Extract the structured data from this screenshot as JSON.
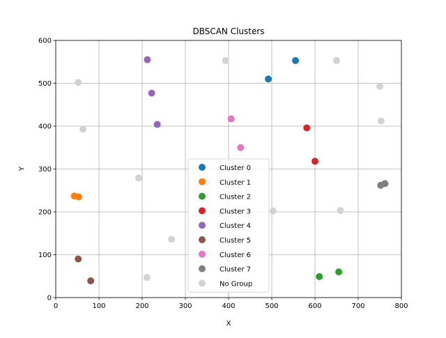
{
  "chart_data": {
    "type": "scatter",
    "title": "DBSCAN Clusters",
    "xlabel": "X",
    "ylabel": "Y",
    "xlim": [
      0,
      800
    ],
    "ylim": [
      0,
      600
    ],
    "xticks": [
      0,
      100,
      200,
      300,
      400,
      500,
      600,
      700,
      800
    ],
    "yticks": [
      0,
      100,
      200,
      300,
      400,
      500,
      600
    ],
    "grid": true,
    "legend_position": "lower-center",
    "series": [
      {
        "name": "Cluster 0",
        "color": "#1f77b4",
        "points": [
          [
            492,
            510
          ],
          [
            555,
            553
          ]
        ]
      },
      {
        "name": "Cluster 1",
        "color": "#ff7f0e",
        "points": [
          [
            43,
            237
          ],
          [
            53,
            235
          ]
        ]
      },
      {
        "name": "Cluster 2",
        "color": "#2ca02c",
        "points": [
          [
            610,
            49
          ],
          [
            655,
            60
          ]
        ]
      },
      {
        "name": "Cluster 3",
        "color": "#d62728",
        "points": [
          [
            581,
            396
          ],
          [
            600,
            318
          ]
        ]
      },
      {
        "name": "Cluster 4",
        "color": "#9467bd",
        "points": [
          [
            212,
            555
          ],
          [
            222,
            477
          ],
          [
            235,
            404
          ]
        ]
      },
      {
        "name": "Cluster 5",
        "color": "#8c564b",
        "points": [
          [
            52,
            90
          ],
          [
            81,
            39
          ]
        ]
      },
      {
        "name": "Cluster 6",
        "color": "#e377c2",
        "points": [
          [
            406,
            417
          ],
          [
            428,
            350
          ]
        ]
      },
      {
        "name": "Cluster 7",
        "color": "#7f7f7f",
        "points": [
          [
            752,
            262
          ],
          [
            762,
            266
          ]
        ]
      },
      {
        "name": "No Group",
        "color": "#d3d3d3",
        "points": [
          [
            52,
            502
          ],
          [
            63,
            393
          ],
          [
            192,
            279
          ],
          [
            211,
            47
          ],
          [
            268,
            136
          ],
          [
            393,
            553
          ],
          [
            350,
            270
          ],
          [
            503,
            202
          ],
          [
            650,
            553
          ],
          [
            659,
            203
          ],
          [
            750,
            493
          ],
          [
            753,
            412
          ]
        ]
      }
    ]
  }
}
